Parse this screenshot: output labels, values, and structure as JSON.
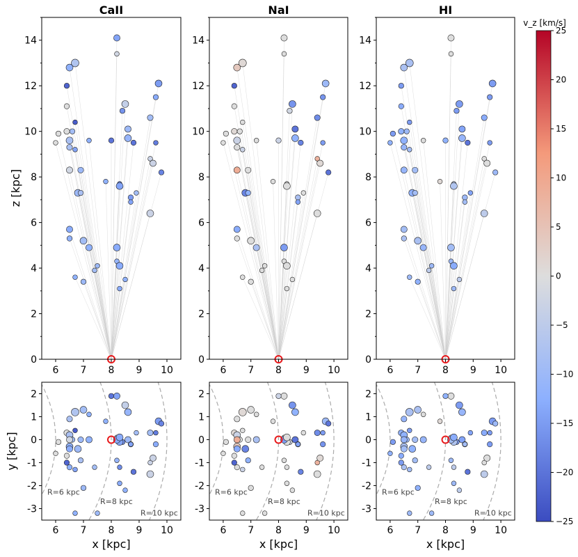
{
  "figure": {
    "panel_titles": [
      "CaII",
      "NaI",
      "HI"
    ],
    "top_ylabel": "z [kpc]",
    "bottom_ylabel": "y [kpc]",
    "bottom_xlabel": "x [kpc]",
    "colorbar_label": "v_z [km/s]",
    "radius_labels": [
      "R=6 kpc",
      "R=8 kpc",
      "R=10 kpc"
    ]
  },
  "chart_data": {
    "type": "scatter",
    "top_axes": {
      "xlim": [
        5.5,
        10.5
      ],
      "ylim": [
        0,
        15
      ],
      "xticks": [
        6,
        7,
        8,
        9,
        10
      ],
      "yticks": [
        0,
        2,
        4,
        6,
        8,
        10,
        12,
        14
      ],
      "xlabel": "",
      "ylabel": "z [kpc]"
    },
    "bottom_axes": {
      "xlim": [
        5.5,
        10.5
      ],
      "ylim": [
        -3.5,
        2.5
      ],
      "xticks": [
        6,
        7,
        8,
        9,
        10
      ],
      "yticks": [
        -3,
        -2,
        -1,
        0,
        1,
        2
      ],
      "xlabel": "x [kpc]",
      "ylabel": "y [kpc]"
    },
    "sun": {
      "x": 8.0,
      "y": 0.0,
      "z": 0.0
    },
    "galactocentric_circles_kpc": [
      6,
      8,
      10
    ],
    "colorbar": {
      "label": "v_z [km/s]",
      "range": [
        -25,
        25
      ],
      "ticks": [
        -25,
        -20,
        -15,
        -10,
        -5,
        0,
        5,
        10,
        15,
        20,
        25
      ],
      "cmap": "coolwarm"
    },
    "stars": [
      {
        "x": 6.5,
        "y": -0.3,
        "z": 12.8,
        "s": 1.2
      },
      {
        "x": 6.7,
        "y": 1.2,
        "z": 13.0,
        "s": 1.3
      },
      {
        "x": 8.2,
        "y": 1.9,
        "z": 14.1,
        "s": 1.1
      },
      {
        "x": 8.2,
        "y": 0.1,
        "z": 13.4,
        "s": 0.8
      },
      {
        "x": 6.4,
        "y": -1.0,
        "z": 12.0,
        "s": 0.9
      },
      {
        "x": 9.7,
        "y": 0.8,
        "z": 12.1,
        "s": 1.2
      },
      {
        "x": 9.6,
        "y": -0.2,
        "z": 11.5,
        "s": 0.9
      },
      {
        "x": 6.4,
        "y": -0.7,
        "z": 11.1,
        "s": 0.9
      },
      {
        "x": 8.5,
        "y": 1.5,
        "z": 11.2,
        "s": 1.2
      },
      {
        "x": 6.7,
        "y": 0.4,
        "z": 10.4,
        "s": 0.8
      },
      {
        "x": 8.4,
        "y": -0.1,
        "z": 10.9,
        "s": 0.9
      },
      {
        "x": 9.4,
        "y": 0.3,
        "z": 10.6,
        "s": 1.0
      },
      {
        "x": 6.0,
        "y": -0.6,
        "z": 9.5,
        "s": 0.8
      },
      {
        "x": 6.1,
        "y": -0.1,
        "z": 9.9,
        "s": 0.9
      },
      {
        "x": 6.4,
        "y": 0.3,
        "z": 10.0,
        "s": 1.0
      },
      {
        "x": 6.5,
        "y": 0.2,
        "z": 9.6,
        "s": 1.2
      },
      {
        "x": 6.5,
        "y": 0.9,
        "z": 9.3,
        "s": 1.0
      },
      {
        "x": 6.6,
        "y": 0.0,
        "z": 10.0,
        "s": 0.9
      },
      {
        "x": 6.7,
        "y": -1.3,
        "z": 9.2,
        "s": 0.8
      },
      {
        "x": 7.2,
        "y": 1.1,
        "z": 9.6,
        "s": 0.8
      },
      {
        "x": 8.0,
        "y": 1.9,
        "z": 9.6,
        "s": 0.9
      },
      {
        "x": 8.6,
        "y": 0.0,
        "z": 10.1,
        "s": 1.1
      },
      {
        "x": 8.6,
        "y": 1.2,
        "z": 9.7,
        "s": 1.2
      },
      {
        "x": 8.8,
        "y": -1.4,
        "z": 9.5,
        "s": 0.9
      },
      {
        "x": 9.6,
        "y": 0.3,
        "z": 9.5,
        "s": 0.8
      },
      {
        "x": 9.4,
        "y": -1.0,
        "z": 8.8,
        "s": 0.8
      },
      {
        "x": 9.5,
        "y": -0.8,
        "z": 8.6,
        "s": 1.1
      },
      {
        "x": 9.8,
        "y": 0.7,
        "z": 8.2,
        "s": 0.9
      },
      {
        "x": 6.5,
        "y": 0.0,
        "z": 8.3,
        "s": 1.1
      },
      {
        "x": 6.9,
        "y": 0.0,
        "z": 8.3,
        "s": 1.0
      },
      {
        "x": 7.8,
        "y": 0.8,
        "z": 7.8,
        "s": 0.8
      },
      {
        "x": 8.3,
        "y": -1.2,
        "z": 7.7,
        "s": 0.8
      },
      {
        "x": 8.3,
        "y": -0.1,
        "z": 7.6,
        "s": 1.2
      },
      {
        "x": 8.9,
        "y": 0.3,
        "z": 7.3,
        "s": 0.8
      },
      {
        "x": 8.7,
        "y": -0.2,
        "z": 7.1,
        "s": 0.9
      },
      {
        "x": 6.8,
        "y": -0.4,
        "z": 7.3,
        "s": 1.2
      },
      {
        "x": 6.9,
        "y": -0.9,
        "z": 7.3,
        "s": 0.9
      },
      {
        "x": 9.4,
        "y": -1.5,
        "z": 6.4,
        "s": 1.2
      },
      {
        "x": 8.7,
        "y": -0.2,
        "z": 6.9,
        "s": 0.8
      },
      {
        "x": 6.5,
        "y": -0.4,
        "z": 5.7,
        "s": 1.1
      },
      {
        "x": 6.5,
        "y": -1.2,
        "z": 5.3,
        "s": 0.9
      },
      {
        "x": 7.0,
        "y": 1.3,
        "z": 5.2,
        "s": 1.2
      },
      {
        "x": 7.2,
        "y": 0.0,
        "z": 4.9,
        "s": 1.1
      },
      {
        "x": 8.2,
        "y": 0.0,
        "z": 4.9,
        "s": 1.2
      },
      {
        "x": 7.5,
        "y": -3.2,
        "z": 4.1,
        "s": 0.8
      },
      {
        "x": 7.4,
        "y": -1.2,
        "z": 3.9,
        "s": 0.8
      },
      {
        "x": 8.2,
        "y": -0.9,
        "z": 4.3,
        "s": 0.8
      },
      {
        "x": 8.3,
        "y": 0.1,
        "z": 4.1,
        "s": 1.2
      },
      {
        "x": 8.5,
        "y": -2.2,
        "z": 3.5,
        "s": 0.8
      },
      {
        "x": 8.3,
        "y": -1.9,
        "z": 3.1,
        "s": 0.8
      },
      {
        "x": 7.0,
        "y": -2.1,
        "z": 3.4,
        "s": 0.9
      },
      {
        "x": 6.7,
        "y": -3.2,
        "z": 3.6,
        "s": 0.8
      }
    ],
    "series": [
      {
        "name": "CaII",
        "vz": [
          -12,
          -7,
          -14,
          -2,
          -22,
          -15,
          -13,
          0,
          -4,
          -23,
          -16,
          -9,
          0,
          0,
          0,
          -8,
          -8,
          -9,
          -14,
          -12,
          -20,
          -10,
          -11,
          -20,
          -19,
          -3,
          -3,
          -18,
          -2,
          -10,
          -12,
          -17,
          -14,
          -9,
          -15,
          -10,
          -8,
          -3,
          -14,
          -13,
          -12,
          -9,
          -12,
          -13,
          -10,
          -9,
          -11,
          -13,
          -12,
          -13,
          -10,
          -12
        ]
      },
      {
        "name": "NaI",
        "vz": [
          4,
          1,
          0,
          0,
          -22,
          -10,
          -16,
          0,
          -16,
          0,
          -2,
          -17,
          0,
          0,
          1,
          -3,
          0,
          0,
          -3,
          0,
          -3,
          -20,
          -12,
          -18,
          -15,
          8,
          1,
          -20,
          9,
          0,
          0,
          0,
          0,
          0,
          -8,
          -18,
          -12,
          0,
          -14,
          -13,
          0,
          0,
          -8,
          -15,
          0,
          0,
          0,
          0,
          0,
          0,
          0,
          0
        ]
      },
      {
        "name": "HI",
        "vz": [
          -8,
          -8,
          0,
          0,
          -15,
          -15,
          -15,
          -13,
          -15,
          -15,
          -15,
          -13,
          -12,
          -15,
          -12,
          -12,
          -11,
          -10,
          -9,
          0,
          -12,
          -14,
          -11,
          -20,
          -15,
          0,
          0,
          -10,
          -11,
          -9,
          1,
          -5,
          -7,
          -14,
          -10,
          -12,
          -9,
          -5,
          -9,
          -9,
          -8,
          -8,
          -11,
          -9,
          -10,
          -5,
          -10,
          -13,
          -5,
          -10,
          -12,
          -10
        ]
      }
    ]
  }
}
